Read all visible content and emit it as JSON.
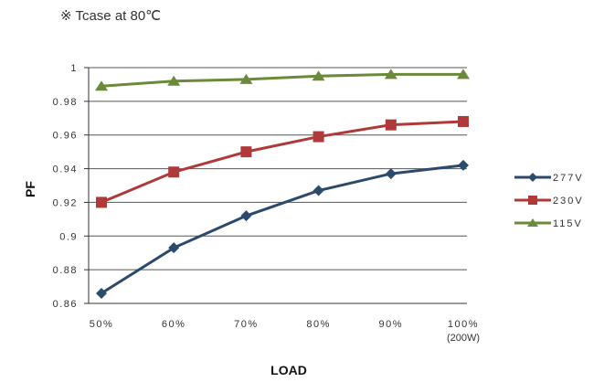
{
  "note": "※ Tcase at 80℃",
  "chart_data": {
    "type": "line",
    "categories": [
      "50%",
      "60%",
      "70%",
      "80%",
      "90%",
      "100%"
    ],
    "category_sublabels": [
      "",
      "",
      "",
      "",
      "",
      "(200W)"
    ],
    "xlabel": "LOAD",
    "ylabel": "PF",
    "ylim": [
      0.86,
      1.0
    ],
    "yticks": [
      "0.86",
      "0.88",
      "0.9",
      "0.92",
      "0.94",
      "0.96",
      "0.98",
      "1"
    ],
    "grid": true,
    "legend_position": "right",
    "series": [
      {
        "name": "277V",
        "color": "#2c4a6b",
        "marker": "diamond",
        "values": [
          0.866,
          0.893,
          0.912,
          0.927,
          0.937,
          0.942
        ]
      },
      {
        "name": "230V",
        "color": "#b03a3a",
        "marker": "square",
        "values": [
          0.92,
          0.938,
          0.95,
          0.959,
          0.966,
          0.968
        ]
      },
      {
        "name": "115V",
        "color": "#6b8b3a",
        "marker": "triangle",
        "values": [
          0.989,
          0.992,
          0.993,
          0.995,
          0.996,
          0.996
        ]
      }
    ]
  }
}
